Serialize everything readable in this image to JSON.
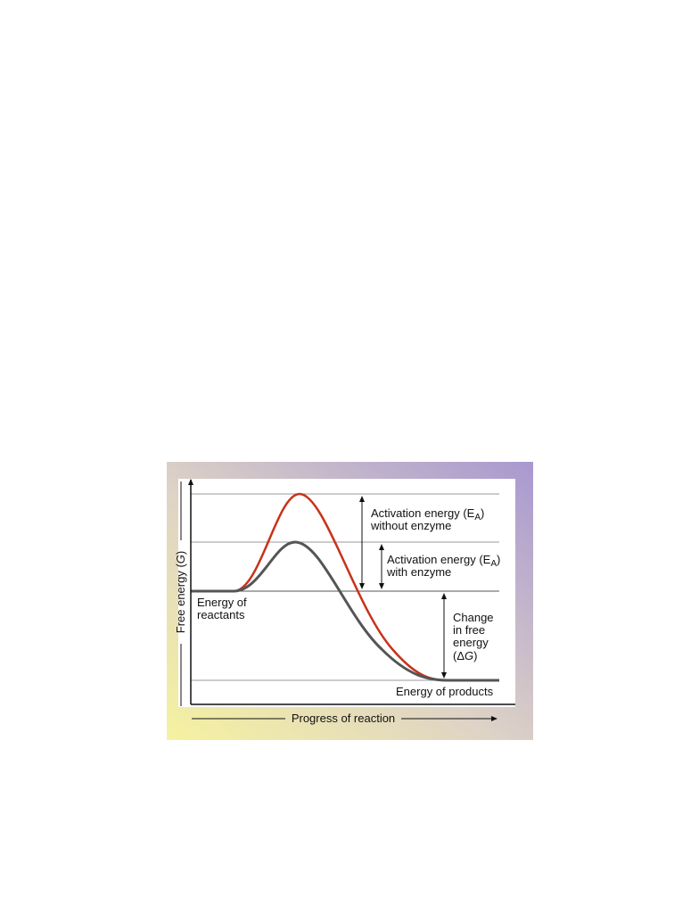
{
  "figure": {
    "y_axis_label": {
      "before": "Free energy (",
      "italic": "G",
      "after": ")"
    },
    "x_axis_label": "Progress of reaction",
    "labels": {
      "without_enzyme": {
        "line1_before": "Activation energy (E",
        "line1_sub": "A",
        "line1_after": ")",
        "line2": "without enzyme"
      },
      "with_enzyme": {
        "line1_before": "Activation energy (E",
        "line1_sub": "A",
        "line1_after": ")",
        "line2": "with enzyme"
      },
      "reactants": [
        "Energy of",
        "reactants"
      ],
      "change": {
        "lines": [
          "Change",
          "in free",
          "energy"
        ],
        "last_before": "(Δ",
        "last_italic": "G",
        "last_after": ")"
      },
      "products": "Energy of products"
    }
  }
}
